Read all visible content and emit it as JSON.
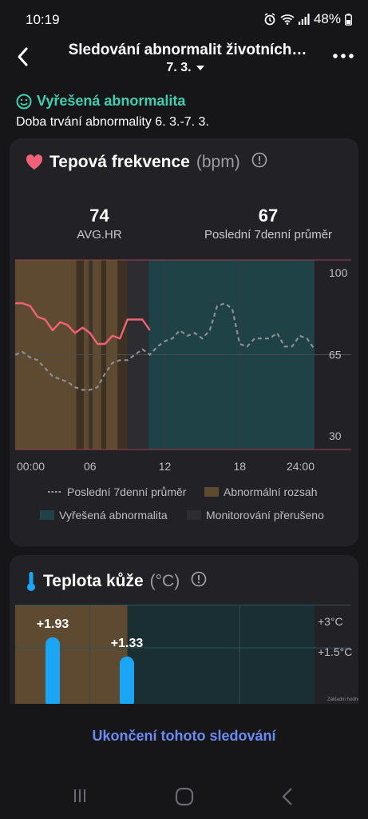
{
  "status": {
    "time": "10:19",
    "battery": "48%"
  },
  "header": {
    "title": "Sledování abnormalit životních…",
    "date": "7. 3."
  },
  "alert": {
    "status": "Vyřešená abnormalita",
    "duration": "Doba trvání abnormality 6. 3.-7. 3."
  },
  "heart_card": {
    "title": "Tepová frekvence",
    "unit": "(bpm)",
    "avg_value": "74",
    "avg_label": "AVG.HR",
    "week_value": "67",
    "week_label": "Poslední 7denní průměr",
    "legend": {
      "avg7": "Poslední 7denní průměr",
      "abnormal": "Abnormální rozsah",
      "resolved": "Vyřešená abnormalita",
      "interrupted": "Monitorování přerušeno"
    }
  },
  "temp_card": {
    "title": "Teplota kůže",
    "unit": "(°C)",
    "y_label_top": "+3°C",
    "y_label_mid": "+1.5°C",
    "y_label_base": "Základní hodnota",
    "bar1": "+1.93",
    "bar2": "+1.33"
  },
  "footer": {
    "stop_label": "Ukončení tohoto sledování"
  },
  "colors": {
    "accent": "#3ecfb2",
    "heart": "#f06277",
    "abnormal": "#5e4a30",
    "resolved": "#1e4245",
    "interrupted": "#2c2c31",
    "temp_bar": "#1aa6f5",
    "link": "#6b8bf2"
  },
  "chart_data": [
    {
      "type": "line",
      "title": "Tepová frekvence (bpm)",
      "x_ticks": [
        "00:00",
        "06",
        "12",
        "18",
        "24:00"
      ],
      "y_ticks": [
        100,
        65,
        30
      ],
      "ylim": [
        30,
        100
      ],
      "xlim": [
        0,
        24
      ],
      "bands": [
        {
          "label": "Abnormální rozsah",
          "from": 0,
          "to": 9.0
        },
        {
          "label": "Monitorování přerušeno",
          "from": 9.0,
          "to": 10.7
        },
        {
          "label": "Vyřešená abnormalita",
          "from": 10.7,
          "to": 24
        }
      ],
      "series": [
        {
          "name": "Poslední 7denní průměr",
          "style": "dashed",
          "x": [
            0,
            0.6,
            1.2,
            1.8,
            2.4,
            3.0,
            3.6,
            4.2,
            4.8,
            5.4,
            6.0,
            6.6,
            7.2,
            7.8,
            8.4,
            9.0,
            9.6,
            10.2,
            10.8,
            11.4,
            12.0,
            12.6,
            13.2,
            13.8,
            14.4,
            15.0,
            15.6,
            16.2,
            16.8,
            17.4,
            18.0,
            18.6,
            19.2,
            19.8,
            20.4,
            21.0,
            21.6,
            22.2,
            22.8,
            23.4,
            24.0
          ],
          "values": [
            65,
            66,
            64,
            63,
            60,
            57,
            56,
            55,
            53,
            52,
            52,
            53,
            58,
            62,
            63,
            63,
            65,
            67,
            65,
            68,
            70,
            71,
            74,
            72,
            73,
            71,
            74,
            83,
            84,
            82,
            69,
            68,
            71,
            71,
            71,
            73,
            68,
            68,
            72,
            71,
            67
          ]
        },
        {
          "name": "Tepová frekvence",
          "style": "solid",
          "x": [
            0,
            0.6,
            1.2,
            1.8,
            2.4,
            3.0,
            3.6,
            4.2,
            4.8,
            5.4,
            6.0,
            6.6,
            7.2,
            7.8,
            8.4,
            9.0,
            9.6,
            10.2,
            10.8
          ],
          "values": [
            84,
            84,
            83,
            79,
            78,
            74,
            77,
            76,
            73,
            75,
            73,
            69,
            69,
            72,
            71,
            78,
            78,
            78,
            74
          ]
        }
      ]
    },
    {
      "type": "bar",
      "title": "Teplota kůže (°C)",
      "categories": [
        "bar1",
        "bar2"
      ],
      "values": [
        1.93,
        1.33
      ],
      "ylim": [
        0,
        3
      ]
    }
  ]
}
